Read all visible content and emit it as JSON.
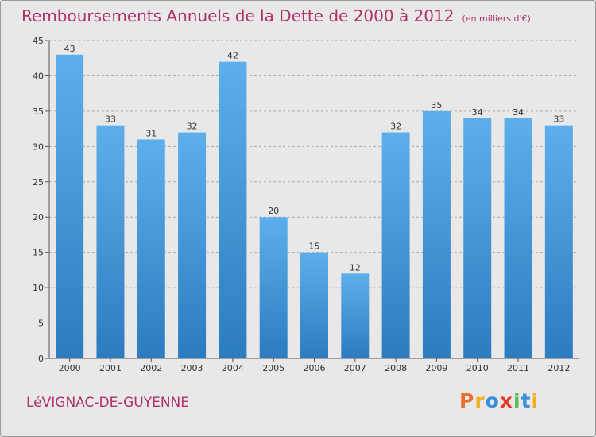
{
  "title": "Remboursements Annuels de la Dette de 2000 à 2012",
  "unit": "(en milliers d'€)",
  "commune": "LéVIGNAC-DE-GUYENNE",
  "logo": {
    "letters": [
      "P",
      "r",
      "o",
      "x",
      "i",
      "t",
      "i"
    ],
    "colors": [
      "#e8702a",
      "#f0b020",
      "#3a8fd8",
      "#e83a2a",
      "#5cb85c",
      "#3a8fd8",
      "#f0b020"
    ]
  },
  "chart_data": {
    "type": "bar",
    "title": "Remboursements Annuels de la Dette de 2000 à 2012",
    "categories": [
      "2000",
      "2001",
      "2002",
      "2003",
      "2004",
      "2005",
      "2006",
      "2007",
      "2008",
      "2009",
      "2010",
      "2011",
      "2012"
    ],
    "values": [
      43,
      33,
      31,
      32,
      42,
      20,
      15,
      12,
      32,
      35,
      34,
      34,
      33
    ],
    "ylim": [
      0,
      45
    ],
    "yticks": [
      0,
      5,
      10,
      15,
      20,
      25,
      30,
      35,
      40,
      45
    ],
    "grid": "horizontal dashed",
    "bar_color_top": "#5dafeb",
    "bar_color_bottom": "#2b7cc0"
  }
}
